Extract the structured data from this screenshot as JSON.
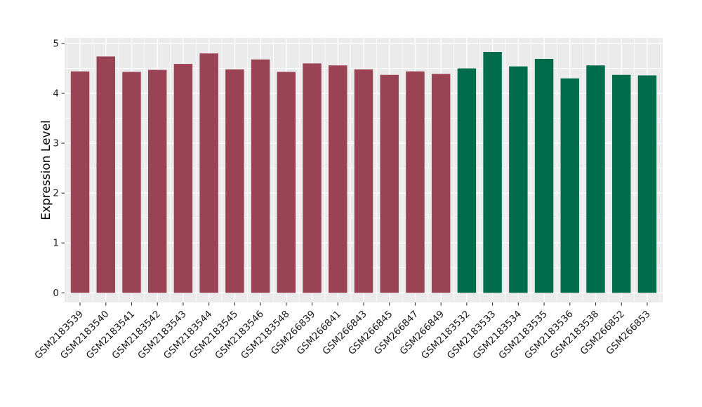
{
  "chart_data": {
    "type": "bar",
    "title": "",
    "xlabel": "",
    "ylabel": "Expression Level",
    "categories": [
      "GSM2183539",
      "GSM2183540",
      "GSM2183541",
      "GSM2183542",
      "GSM2183543",
      "GSM2183544",
      "GSM2183545",
      "GSM2183546",
      "GSM2183548",
      "GSM266839",
      "GSM266841",
      "GSM266843",
      "GSM266845",
      "GSM266847",
      "GSM266849",
      "GSM2183532",
      "GSM2183533",
      "GSM2183534",
      "GSM2183535",
      "GSM2183536",
      "GSM2183538",
      "GSM266852",
      "GSM266853"
    ],
    "values": [
      4.44,
      4.74,
      4.43,
      4.47,
      4.59,
      4.8,
      4.48,
      4.68,
      4.43,
      4.6,
      4.56,
      4.48,
      4.37,
      4.44,
      4.39,
      4.5,
      4.83,
      4.54,
      4.69,
      4.3,
      4.56,
      4.37,
      4.36
    ],
    "groups": [
      "group-1",
      "group-1",
      "group-1",
      "group-1",
      "group-1",
      "group-1",
      "group-1",
      "group-1",
      "group-1",
      "group-1",
      "group-1",
      "group-1",
      "group-1",
      "group-1",
      "group-1",
      "group-2",
      "group-2",
      "group-2",
      "group-2",
      "group-2",
      "group-2",
      "group-2",
      "group-2"
    ],
    "group_colors": {
      "group-1": "#9A4354",
      "group-2": "#016C4B"
    },
    "ylim": [
      0,
      5
    ],
    "yticks": [
      0,
      1,
      2,
      3,
      4,
      5
    ],
    "grid": "on",
    "legend_position": "none",
    "panel_background": "#EBEBEB",
    "grid_color": "#FFFFFF",
    "axis_text_color": "#1A1A1A",
    "tick_mark_color": "#333333"
  }
}
